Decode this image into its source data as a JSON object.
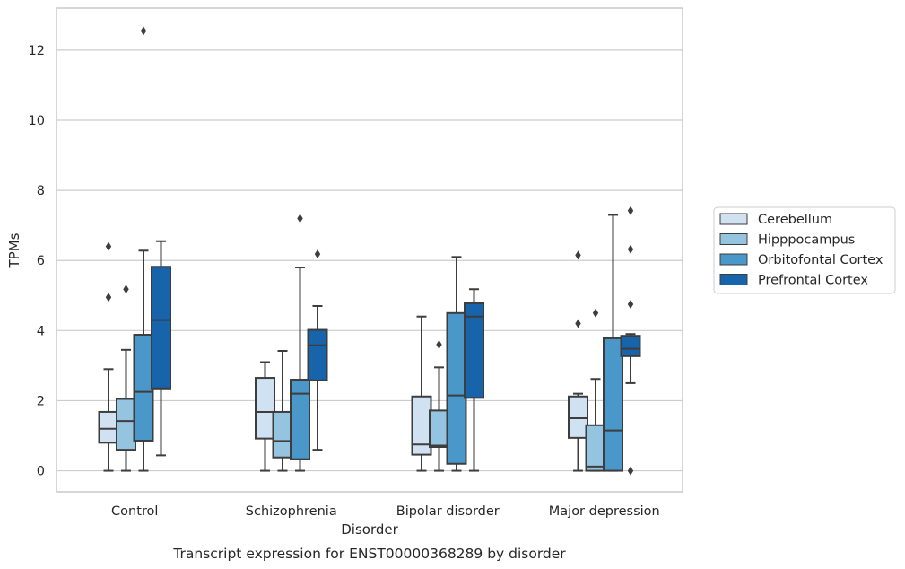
{
  "chart_data": {
    "type": "boxplot",
    "caption": "Transcript expression for ENST00000368289 by disorder",
    "xlabel": "Disorder",
    "ylabel": "TPMs",
    "ylim": [
      -0.6,
      13.2
    ],
    "yticks": [
      0,
      2,
      4,
      6,
      8,
      10,
      12
    ],
    "grid": "horizontal",
    "legend_position": "right",
    "categories": [
      "Control",
      "Schizophrenia",
      "Bipolar disorder",
      "Major depression"
    ],
    "series": [
      {
        "name": "Cerebellum",
        "color": "#d0e1f2",
        "boxes": [
          {
            "whislo": 0.0,
            "q1": 0.8,
            "med": 1.2,
            "q3": 1.68,
            "whishi": 2.9,
            "fliers": [
              4.95,
              6.4
            ]
          },
          {
            "whislo": 0.0,
            "q1": 0.92,
            "med": 1.68,
            "q3": 2.65,
            "whishi": 3.1,
            "fliers": []
          },
          {
            "whislo": 0.0,
            "q1": 0.46,
            "med": 0.75,
            "q3": 2.12,
            "whishi": 4.4,
            "fliers": []
          },
          {
            "whislo": 0.0,
            "q1": 0.94,
            "med": 1.5,
            "q3": 2.12,
            "whishi": 2.2,
            "fliers": [
              4.2,
              6.15
            ]
          }
        ]
      },
      {
        "name": "Hipppocampus",
        "color": "#94c4df",
        "boxes": [
          {
            "whislo": 0.0,
            "q1": 0.6,
            "med": 1.42,
            "q3": 2.05,
            "whishi": 3.45,
            "fliers": [
              5.18
            ]
          },
          {
            "whislo": 0.0,
            "q1": 0.38,
            "med": 0.85,
            "q3": 1.68,
            "whishi": 3.42,
            "fliers": []
          },
          {
            "whislo": 0.0,
            "q1": 0.68,
            "med": 0.72,
            "q3": 1.72,
            "whishi": 2.95,
            "fliers": [
              3.6
            ]
          },
          {
            "whislo": 0.0,
            "q1": 0.0,
            "med": 0.12,
            "q3": 1.3,
            "whishi": 2.62,
            "fliers": [
              4.5
            ]
          }
        ]
      },
      {
        "name": "Orbitofontal Cortex",
        "color": "#4a98c9",
        "boxes": [
          {
            "whislo": 0.0,
            "q1": 0.86,
            "med": 2.25,
            "q3": 3.88,
            "whishi": 6.28,
            "fliers": [
              12.55
            ]
          },
          {
            "whislo": 0.0,
            "q1": 0.33,
            "med": 2.2,
            "q3": 2.6,
            "whishi": 5.8,
            "fliers": [
              7.2
            ]
          },
          {
            "whislo": 0.0,
            "q1": 0.2,
            "med": 2.15,
            "q3": 4.5,
            "whishi": 6.1,
            "fliers": []
          },
          {
            "whislo": 0.0,
            "q1": 0.0,
            "med": 1.15,
            "q3": 3.78,
            "whishi": 7.3,
            "fliers": []
          }
        ]
      },
      {
        "name": "Prefrontal Cortex",
        "color": "#1764ab",
        "boxes": [
          {
            "whislo": 0.44,
            "q1": 2.35,
            "med": 4.3,
            "q3": 5.82,
            "whishi": 6.55,
            "fliers": []
          },
          {
            "whislo": 0.6,
            "q1": 2.58,
            "med": 3.58,
            "q3": 4.02,
            "whishi": 4.7,
            "fliers": [
              6.18
            ]
          },
          {
            "whislo": 0.0,
            "q1": 2.08,
            "med": 4.4,
            "q3": 4.78,
            "whishi": 5.18,
            "fliers": []
          },
          {
            "whislo": 2.5,
            "q1": 3.27,
            "med": 3.48,
            "q3": 3.85,
            "whishi": 3.9,
            "fliers": [
              0.0,
              4.75,
              6.32,
              7.42
            ]
          }
        ]
      }
    ]
  }
}
